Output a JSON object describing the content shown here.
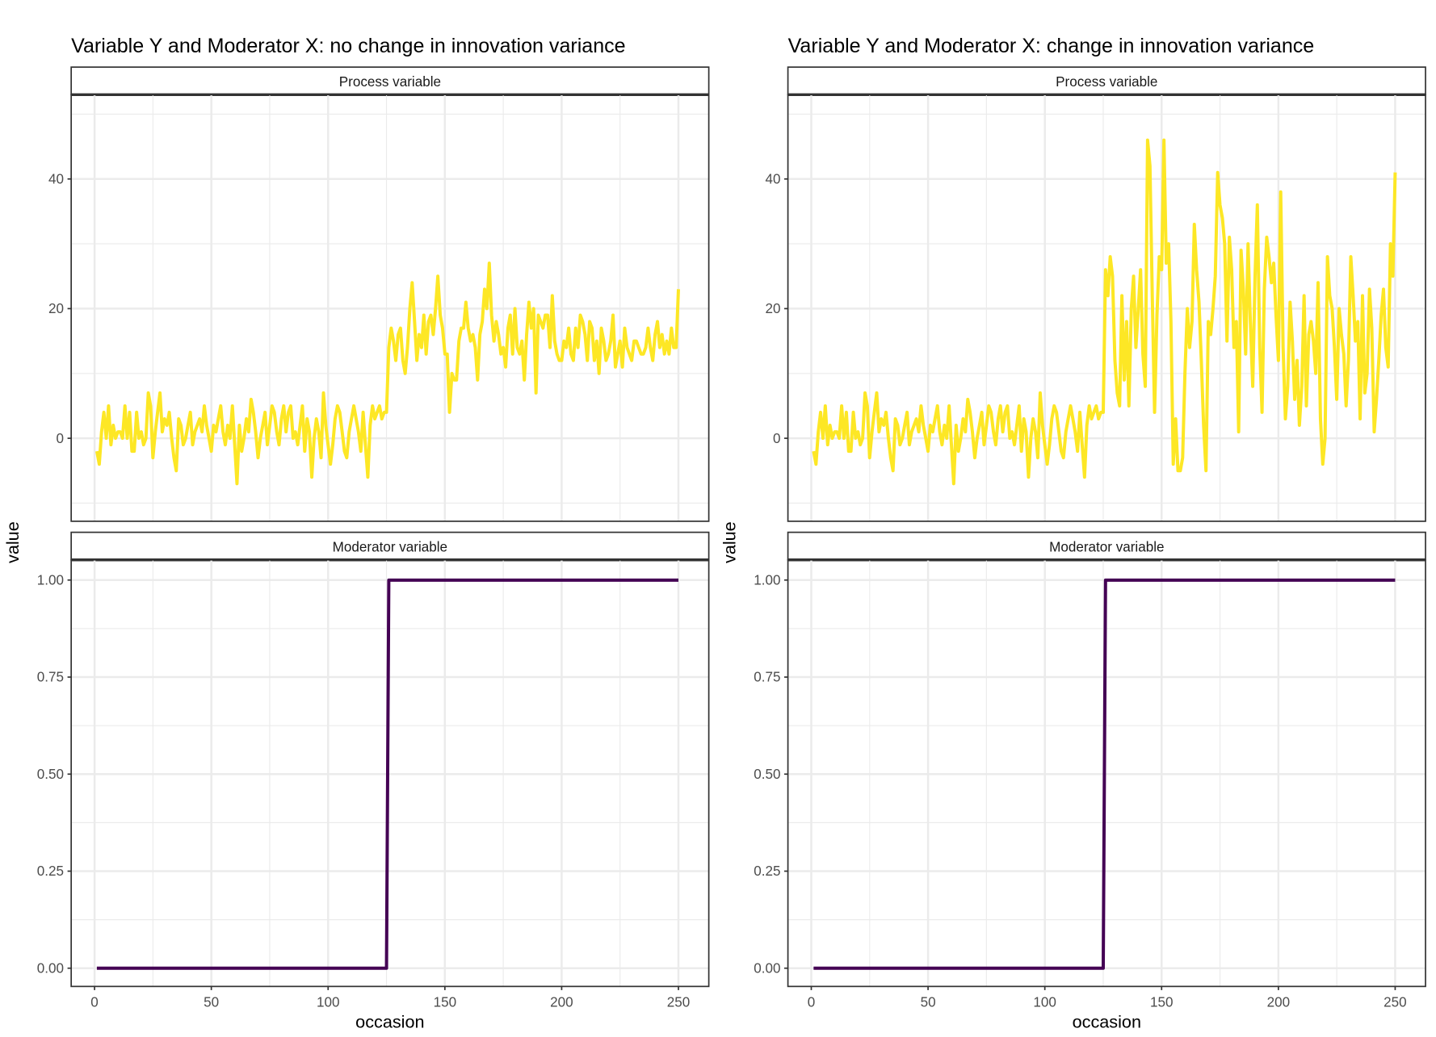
{
  "colors": {
    "process": "#FDE725",
    "moderator": "#440154",
    "grid": "#EBEBEB",
    "axis_text": "#4D4D4D",
    "border": "#333333"
  },
  "shared_y_label": "value",
  "chart_data": [
    {
      "type": "line",
      "title": "Variable Y and Moderator X: no change in innovation variance",
      "xlabel": "occasion",
      "ylabel": "value",
      "grid": true,
      "legend": "none",
      "x_ticks": [
        "0",
        "50",
        "100",
        "150",
        "200",
        "250"
      ],
      "xlim": [
        -10,
        263
      ],
      "facets": [
        {
          "strip": "Process variable",
          "ylim": [
            -12.8,
            53
          ],
          "y_ticks": [
            "0",
            "20",
            "40"
          ],
          "color": "#FDE725",
          "x_start": 1,
          "values": [
            -2,
            -4,
            1,
            4,
            0,
            5,
            -1,
            2,
            0,
            1,
            1,
            0,
            5,
            0,
            4,
            -2,
            -2,
            4,
            0,
            1,
            -1,
            0,
            7,
            5,
            -3,
            1,
            4,
            7,
            1,
            3,
            2,
            4,
            0,
            -3,
            -5,
            3,
            2,
            -1,
            0,
            2,
            4,
            -1,
            1,
            2,
            3,
            1,
            5,
            2,
            0,
            -2,
            2,
            1,
            3,
            5,
            1,
            -1,
            2,
            0,
            5,
            -1,
            -7,
            2,
            -2,
            0,
            3,
            1,
            6,
            4,
            1,
            -3,
            0,
            2,
            4,
            -1,
            2,
            5,
            4,
            1,
            -1,
            3,
            5,
            1,
            4,
            5,
            0,
            1,
            -1,
            2,
            5,
            -2,
            3,
            1,
            -6,
            0,
            3,
            1,
            -3,
            7,
            2,
            -1,
            -4,
            -1,
            3,
            5,
            4,
            1,
            -2,
            -3,
            1,
            3,
            5,
            3,
            1,
            -2,
            4,
            -1,
            -6,
            2,
            5,
            3,
            4,
            5,
            3,
            4,
            4,
            14,
            17,
            15,
            12,
            16,
            17,
            12,
            10,
            14,
            20,
            24,
            18,
            12,
            16,
            14,
            19,
            13,
            18,
            19,
            16,
            20,
            25,
            19,
            17,
            13,
            13,
            4,
            10,
            9,
            9,
            15,
            17,
            17,
            21,
            17,
            15,
            16,
            14,
            9,
            16,
            18,
            23,
            20,
            27,
            19,
            15,
            18,
            16,
            13,
            14,
            11,
            17,
            19,
            13,
            20,
            14,
            13,
            15,
            9,
            16,
            21,
            17,
            20,
            7,
            19,
            18,
            17,
            19,
            19,
            14,
            22,
            15,
            13,
            12,
            12,
            15,
            14,
            17,
            13,
            12,
            17,
            14,
            19,
            18,
            16,
            12,
            18,
            17,
            12,
            15,
            10,
            17,
            15,
            12,
            13,
            15,
            19,
            11,
            13,
            15,
            11,
            17,
            14,
            13,
            12,
            15,
            15,
            14,
            13,
            13,
            14,
            17,
            14,
            12,
            16,
            18,
            14,
            16,
            13,
            15,
            13,
            17,
            14,
            14,
            23
          ]
        },
        {
          "strip": "Moderator variable",
          "ylim": [
            -0.047,
            1.052
          ],
          "y_ticks": [
            "0.00",
            "0.25",
            "0.50",
            "0.75",
            "1.00"
          ],
          "color": "#440154",
          "step": {
            "x_range": [
              1,
              250
            ],
            "change_after": 125,
            "before": 0,
            "after": 1
          }
        }
      ]
    },
    {
      "type": "line",
      "title": "Variable Y and Moderator X: change in innovation variance",
      "xlabel": "occasion",
      "ylabel": "value",
      "grid": true,
      "legend": "none",
      "x_ticks": [
        "0",
        "50",
        "100",
        "150",
        "200",
        "250"
      ],
      "xlim": [
        -10,
        263
      ],
      "facets": [
        {
          "strip": "Process variable",
          "ylim": [
            -12.8,
            53
          ],
          "y_ticks": [
            "0",
            "20",
            "40"
          ],
          "color": "#FDE725",
          "x_start": 1,
          "values": [
            -2,
            -4,
            1,
            4,
            0,
            5,
            -1,
            2,
            0,
            1,
            1,
            0,
            5,
            0,
            4,
            -2,
            -2,
            4,
            0,
            1,
            -1,
            0,
            7,
            5,
            -3,
            1,
            4,
            7,
            1,
            3,
            2,
            4,
            0,
            -3,
            -5,
            3,
            2,
            -1,
            0,
            2,
            4,
            -1,
            1,
            2,
            3,
            1,
            5,
            2,
            0,
            -2,
            2,
            1,
            3,
            5,
            1,
            -1,
            2,
            0,
            5,
            -1,
            -7,
            2,
            -2,
            0,
            3,
            1,
            6,
            4,
            1,
            -3,
            0,
            2,
            4,
            -1,
            2,
            5,
            4,
            1,
            -1,
            3,
            5,
            1,
            4,
            5,
            0,
            1,
            -1,
            2,
            5,
            -2,
            3,
            1,
            -6,
            0,
            3,
            1,
            -3,
            7,
            2,
            -1,
            -4,
            -1,
            3,
            5,
            4,
            1,
            -2,
            -3,
            1,
            3,
            5,
            3,
            1,
            -2,
            4,
            -1,
            -6,
            2,
            5,
            3,
            4,
            5,
            3,
            4,
            4,
            26,
            22,
            28,
            25,
            12,
            7,
            5,
            22,
            9,
            18,
            5,
            20,
            25,
            14,
            20,
            26,
            13,
            8,
            46,
            42,
            22,
            4,
            19,
            28,
            26,
            46,
            27,
            30,
            18,
            -4,
            3,
            -5,
            -5,
            -3,
            10,
            20,
            14,
            18,
            33,
            26,
            21,
            12,
            2,
            -5,
            18,
            16,
            20,
            25,
            41,
            36,
            34,
            30,
            15,
            31,
            26,
            14,
            18,
            1,
            29,
            23,
            13,
            30,
            18,
            8,
            25,
            36,
            14,
            4,
            23,
            31,
            28,
            24,
            27,
            19,
            12,
            38,
            14,
            3,
            8,
            21,
            15,
            6,
            12,
            2,
            8,
            22,
            5,
            16,
            18,
            15,
            10,
            24,
            3,
            -4,
            0,
            28,
            22,
            20,
            14,
            6,
            20,
            16,
            13,
            5,
            12,
            28,
            22,
            15,
            18,
            3,
            22,
            7,
            10,
            23,
            17,
            1,
            6,
            12,
            19,
            23,
            14,
            11,
            30,
            25,
            41
          ]
        },
        {
          "strip": "Moderator variable",
          "ylim": [
            -0.047,
            1.052
          ],
          "y_ticks": [
            "0.00",
            "0.25",
            "0.50",
            "0.75",
            "1.00"
          ],
          "color": "#440154",
          "step": {
            "x_range": [
              1,
              250
            ],
            "change_after": 125,
            "before": 0,
            "after": 1
          }
        }
      ]
    }
  ]
}
